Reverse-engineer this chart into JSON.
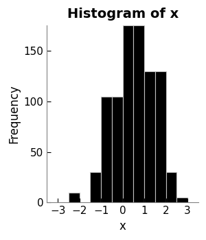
{
  "title": "Histogram of x",
  "xlabel": "x",
  "ylabel": "Frequency",
  "bar_left_edges": [
    -3.0,
    -2.5,
    -2.0,
    -1.5,
    -1.0,
    -0.5,
    0.0,
    0.5,
    1.0,
    1.5,
    2.0,
    2.5
  ],
  "bar_heights": [
    0,
    10,
    0,
    30,
    105,
    105,
    175,
    175,
    130,
    130,
    30,
    5
  ],
  "bin_width": 0.5,
  "bar_color": "#000000",
  "bar_edge_color": "#ffffff",
  "background_color": "#ffffff",
  "xlim": [
    -3.5,
    3.5
  ],
  "ylim": [
    0,
    175
  ],
  "xticks": [
    -3,
    -2,
    -1,
    0,
    1,
    2,
    3
  ],
  "yticks": [
    0,
    50,
    100,
    150
  ],
  "title_fontsize": 14,
  "label_fontsize": 12,
  "tick_fontsize": 11
}
